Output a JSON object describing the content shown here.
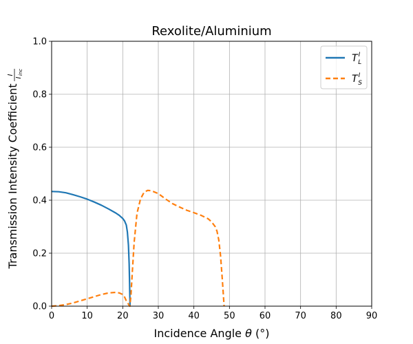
{
  "chart_data": {
    "type": "line",
    "title": "Rexolite/Aluminium",
    "xlabel": {
      "prefix": "Incidence Angle ",
      "symbol": "θ",
      "suffix": " (°)"
    },
    "ylabel": {
      "text": "Transmission Intensity Coefficient ",
      "frac_num": "I",
      "frac_den": "I",
      "frac_den_sub": "inc"
    },
    "xlim": [
      0,
      90
    ],
    "ylim": [
      0,
      1.0
    ],
    "x_ticks": [
      0,
      10,
      20,
      30,
      40,
      50,
      60,
      70,
      80,
      90
    ],
    "y_ticks": [
      0.0,
      0.2,
      0.4,
      0.6,
      0.8,
      1.0
    ],
    "x_tick_labels": [
      "0",
      "10",
      "20",
      "30",
      "40",
      "50",
      "60",
      "70",
      "80",
      "90"
    ],
    "y_tick_labels": [
      "0.0",
      "0.2",
      "0.4",
      "0.6",
      "0.8",
      "1.0"
    ],
    "grid": true,
    "legend_position": "top-right",
    "series": [
      {
        "name": "T_L^I",
        "legend_main": "T",
        "legend_sub": "L",
        "legend_sup": "I",
        "color": "#1f77b4",
        "style": "solid",
        "x": [
          0,
          2,
          4,
          6,
          8,
          10,
          12,
          14,
          16,
          18,
          19,
          20,
          20.5,
          21,
          21.3,
          21.6,
          21.8,
          21.9,
          22.0,
          22.05
        ],
        "y": [
          0.433,
          0.432,
          0.428,
          0.421,
          0.413,
          0.404,
          0.393,
          0.381,
          0.367,
          0.352,
          0.343,
          0.331,
          0.322,
          0.306,
          0.28,
          0.23,
          0.16,
          0.1,
          0.03,
          0.0
        ]
      },
      {
        "name": "T_S^I",
        "legend_main": "T",
        "legend_sub": "S",
        "legend_sup": "I",
        "color": "#ff7f0e",
        "style": "dashed",
        "x": [
          0,
          2,
          4,
          6,
          8,
          10,
          12,
          14,
          16,
          18,
          19,
          20,
          20.5,
          21,
          21.5,
          21.8,
          22.0,
          22.3,
          22.7,
          23.2,
          24,
          25,
          26,
          27,
          28,
          30,
          32,
          34,
          36,
          38,
          40,
          42,
          44,
          45,
          46,
          46.5,
          47,
          47.5,
          48,
          48.3,
          48.5
        ],
        "y": [
          0.0,
          0.002,
          0.006,
          0.012,
          0.02,
          0.028,
          0.036,
          0.044,
          0.05,
          0.052,
          0.05,
          0.044,
          0.035,
          0.02,
          0.01,
          0.003,
          0.0,
          0.04,
          0.13,
          0.24,
          0.35,
          0.405,
          0.43,
          0.437,
          0.436,
          0.425,
          0.405,
          0.387,
          0.374,
          0.362,
          0.353,
          0.343,
          0.33,
          0.318,
          0.3,
          0.283,
          0.25,
          0.19,
          0.1,
          0.04,
          0.0
        ]
      }
    ]
  }
}
